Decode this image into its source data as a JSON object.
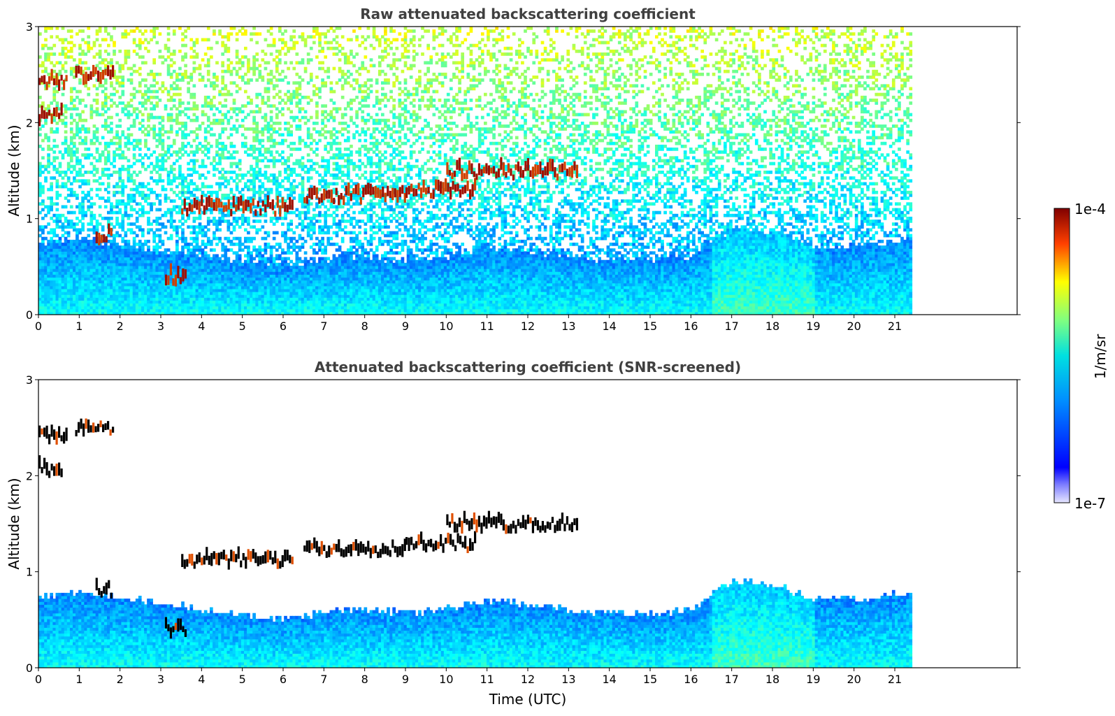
{
  "chart_data": [
    {
      "type": "heatmap",
      "title": "Raw attenuated backscattering coefficient",
      "xlabel": "",
      "ylabel": "Altitude (km)",
      "xlim": [
        0,
        24
      ],
      "ylim": [
        0,
        3
      ],
      "xticks": [
        0,
        1,
        2,
        3,
        4,
        5,
        6,
        7,
        8,
        9,
        10,
        11,
        12,
        13,
        14,
        15,
        16,
        17,
        18,
        19,
        20,
        21
      ],
      "yticks": [
        0,
        1,
        2,
        3
      ],
      "data_end_time": 21.4,
      "aerosol_layer_top_km": [
        [
          0,
          0.72
        ],
        [
          1,
          0.78
        ],
        [
          2,
          0.72
        ],
        [
          3,
          0.65
        ],
        [
          4,
          0.6
        ],
        [
          5,
          0.55
        ],
        [
          6,
          0.5
        ],
        [
          7,
          0.55
        ],
        [
          8,
          0.6
        ],
        [
          9,
          0.55
        ],
        [
          10,
          0.6
        ],
        [
          11,
          0.7
        ],
        [
          12,
          0.65
        ],
        [
          13,
          0.6
        ],
        [
          14,
          0.55
        ],
        [
          15,
          0.55
        ],
        [
          16,
          0.6
        ],
        [
          17,
          0.9
        ],
        [
          18,
          0.85
        ],
        [
          19,
          0.7
        ],
        [
          20,
          0.7
        ],
        [
          21,
          0.75
        ]
      ],
      "cloud_layers": [
        {
          "t0": 0.0,
          "t1": 0.7,
          "alt": 2.38
        },
        {
          "t0": 0.9,
          "t1": 1.85,
          "alt": 2.45
        },
        {
          "t0": 0.0,
          "t1": 0.6,
          "alt": 2.02
        },
        {
          "t0": 1.4,
          "t1": 1.8,
          "alt": 0.78
        },
        {
          "t0": 3.5,
          "t1": 6.2,
          "alt": 1.08
        },
        {
          "t0": 3.1,
          "t1": 3.6,
          "alt": 0.35
        },
        {
          "t0": 6.5,
          "t1": 9.0,
          "alt": 1.2
        },
        {
          "t0": 9.0,
          "t1": 10.7,
          "alt": 1.25
        },
        {
          "t0": 10.0,
          "t1": 13.2,
          "alt": 1.45
        }
      ]
    },
    {
      "type": "heatmap",
      "title": "Attenuated backscattering coefficient (SNR-screened)",
      "xlabel": "Time (UTC)",
      "ylabel": "Altitude (km)",
      "xlim": [
        0,
        24
      ],
      "ylim": [
        0,
        3
      ],
      "xticks": [
        0,
        1,
        2,
        3,
        4,
        5,
        6,
        7,
        8,
        9,
        10,
        11,
        12,
        13,
        14,
        15,
        16,
        17,
        18,
        19,
        20,
        21
      ],
      "yticks": [
        0,
        1,
        2,
        3
      ],
      "data_end_time": 21.4
    }
  ],
  "colorbar": {
    "label": "1/m/sr",
    "max_label": "1e-4",
    "min_label": "1e-7",
    "scale": "log",
    "colormap": "jet"
  }
}
